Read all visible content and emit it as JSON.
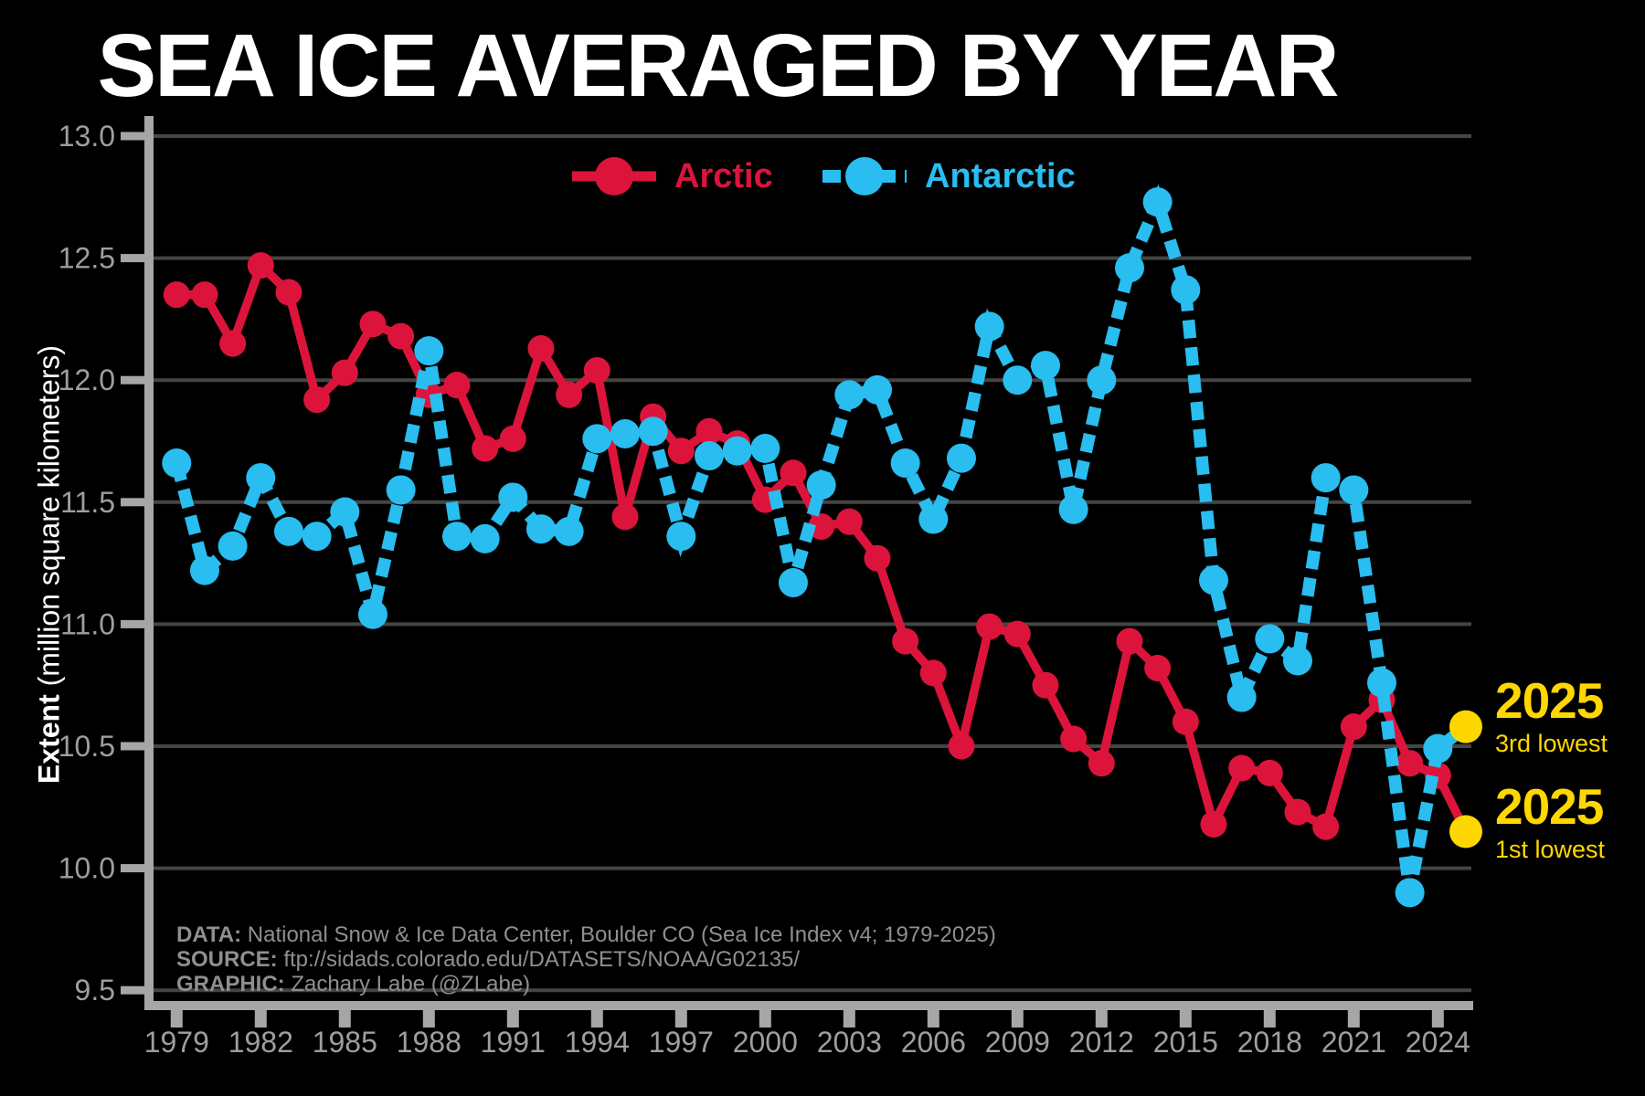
{
  "title": "SEA ICE AVERAGED BY YEAR",
  "y_axis": {
    "label_bold": "Extent",
    "label_rest": " (million square kilometers)"
  },
  "legend": {
    "items": [
      {
        "label": "Arctic",
        "color": "#DC143C",
        "style": "solid"
      },
      {
        "label": "Antarctic",
        "color": "#29BDF0",
        "style": "dashed"
      }
    ]
  },
  "annotations": [
    {
      "year": "2025",
      "rank": "3rd lowest",
      "series": "Antarctic",
      "value": 10.58
    },
    {
      "year": "2025",
      "rank": "1st lowest",
      "series": "Arctic",
      "value": 10.15
    }
  ],
  "source_block": {
    "data_label": "DATA:",
    "data_text": "National Snow & Ice Data Center, Boulder CO (Sea Ice Index v4; 1979-2025)",
    "source_label": "SOURCE:",
    "source_text": "ftp://sidads.colorado.edu/DATASETS/NOAA/G02135/",
    "graphic_label": "GRAPHIC:",
    "graphic_text": "Zachary Labe (@ZLabe)"
  },
  "colors": {
    "background": "#000000",
    "title": "#FFFFFF",
    "arctic": "#DC143C",
    "antarctic": "#29BDF0",
    "highlight": "#FFD700",
    "gridline": "#454545",
    "axis": "#A6A6A6",
    "tick_label": "#9E9E9E",
    "source_text": "#8F8F8F"
  },
  "chart_data": {
    "type": "line",
    "title": "SEA ICE AVERAGED BY YEAR",
    "xlabel": "",
    "ylabel": "Extent (million square kilometers)",
    "ylim": [
      9.5,
      13.0
    ],
    "xlim": [
      1978.5,
      2025.5
    ],
    "grid": true,
    "legend_position": "top",
    "y_ticks": [
      13.0,
      12.5,
      12.0,
      11.5,
      11.0,
      10.5,
      10.0,
      9.5
    ],
    "x_ticks": [
      1979,
      1982,
      1985,
      1988,
      1991,
      1994,
      1997,
      2000,
      2003,
      2006,
      2009,
      2012,
      2015,
      2018,
      2021,
      2024
    ],
    "x": [
      1979,
      1980,
      1981,
      1982,
      1983,
      1984,
      1985,
      1986,
      1987,
      1988,
      1989,
      1990,
      1991,
      1992,
      1993,
      1994,
      1995,
      1996,
      1997,
      1998,
      1999,
      2000,
      2001,
      2002,
      2003,
      2004,
      2005,
      2006,
      2007,
      2008,
      2009,
      2010,
      2011,
      2012,
      2013,
      2014,
      2015,
      2016,
      2017,
      2018,
      2019,
      2020,
      2021,
      2022,
      2023,
      2024,
      2025
    ],
    "series": [
      {
        "name": "Arctic",
        "color": "#DC143C",
        "line_style": "solid",
        "values": [
          12.35,
          12.35,
          12.15,
          12.47,
          12.36,
          11.92,
          12.03,
          12.23,
          12.18,
          11.94,
          11.98,
          11.72,
          11.76,
          12.13,
          11.94,
          12.04,
          11.44,
          11.85,
          11.71,
          11.79,
          11.74,
          11.51,
          11.62,
          11.4,
          11.42,
          11.27,
          10.93,
          10.8,
          10.5,
          10.99,
          10.96,
          10.75,
          10.53,
          10.43,
          10.93,
          10.82,
          10.6,
          10.18,
          10.41,
          10.39,
          10.23,
          10.17,
          10.58,
          10.69,
          10.43,
          10.38,
          10.15
        ]
      },
      {
        "name": "Antarctic",
        "color": "#29BDF0",
        "line_style": "dashed",
        "values": [
          11.66,
          11.22,
          11.32,
          11.6,
          11.38,
          11.36,
          11.46,
          11.04,
          11.55,
          12.12,
          11.36,
          11.35,
          11.52,
          11.39,
          11.38,
          11.76,
          11.78,
          11.79,
          11.36,
          11.69,
          11.71,
          11.72,
          11.17,
          11.57,
          11.94,
          11.96,
          11.66,
          11.43,
          11.68,
          12.22,
          12.0,
          12.06,
          11.47,
          12.0,
          12.46,
          12.73,
          12.37,
          11.18,
          10.7,
          10.94,
          10.85,
          11.6,
          11.55,
          10.76,
          9.9,
          10.49,
          10.58
        ]
      }
    ],
    "highlight_points": [
      {
        "series": "Antarctic",
        "x": 2025,
        "value": 10.58,
        "color": "#FFD700",
        "label": "2025 3rd lowest"
      },
      {
        "series": "Arctic",
        "x": 2025,
        "value": 10.15,
        "color": "#FFD700",
        "label": "2025 1st lowest"
      }
    ]
  }
}
